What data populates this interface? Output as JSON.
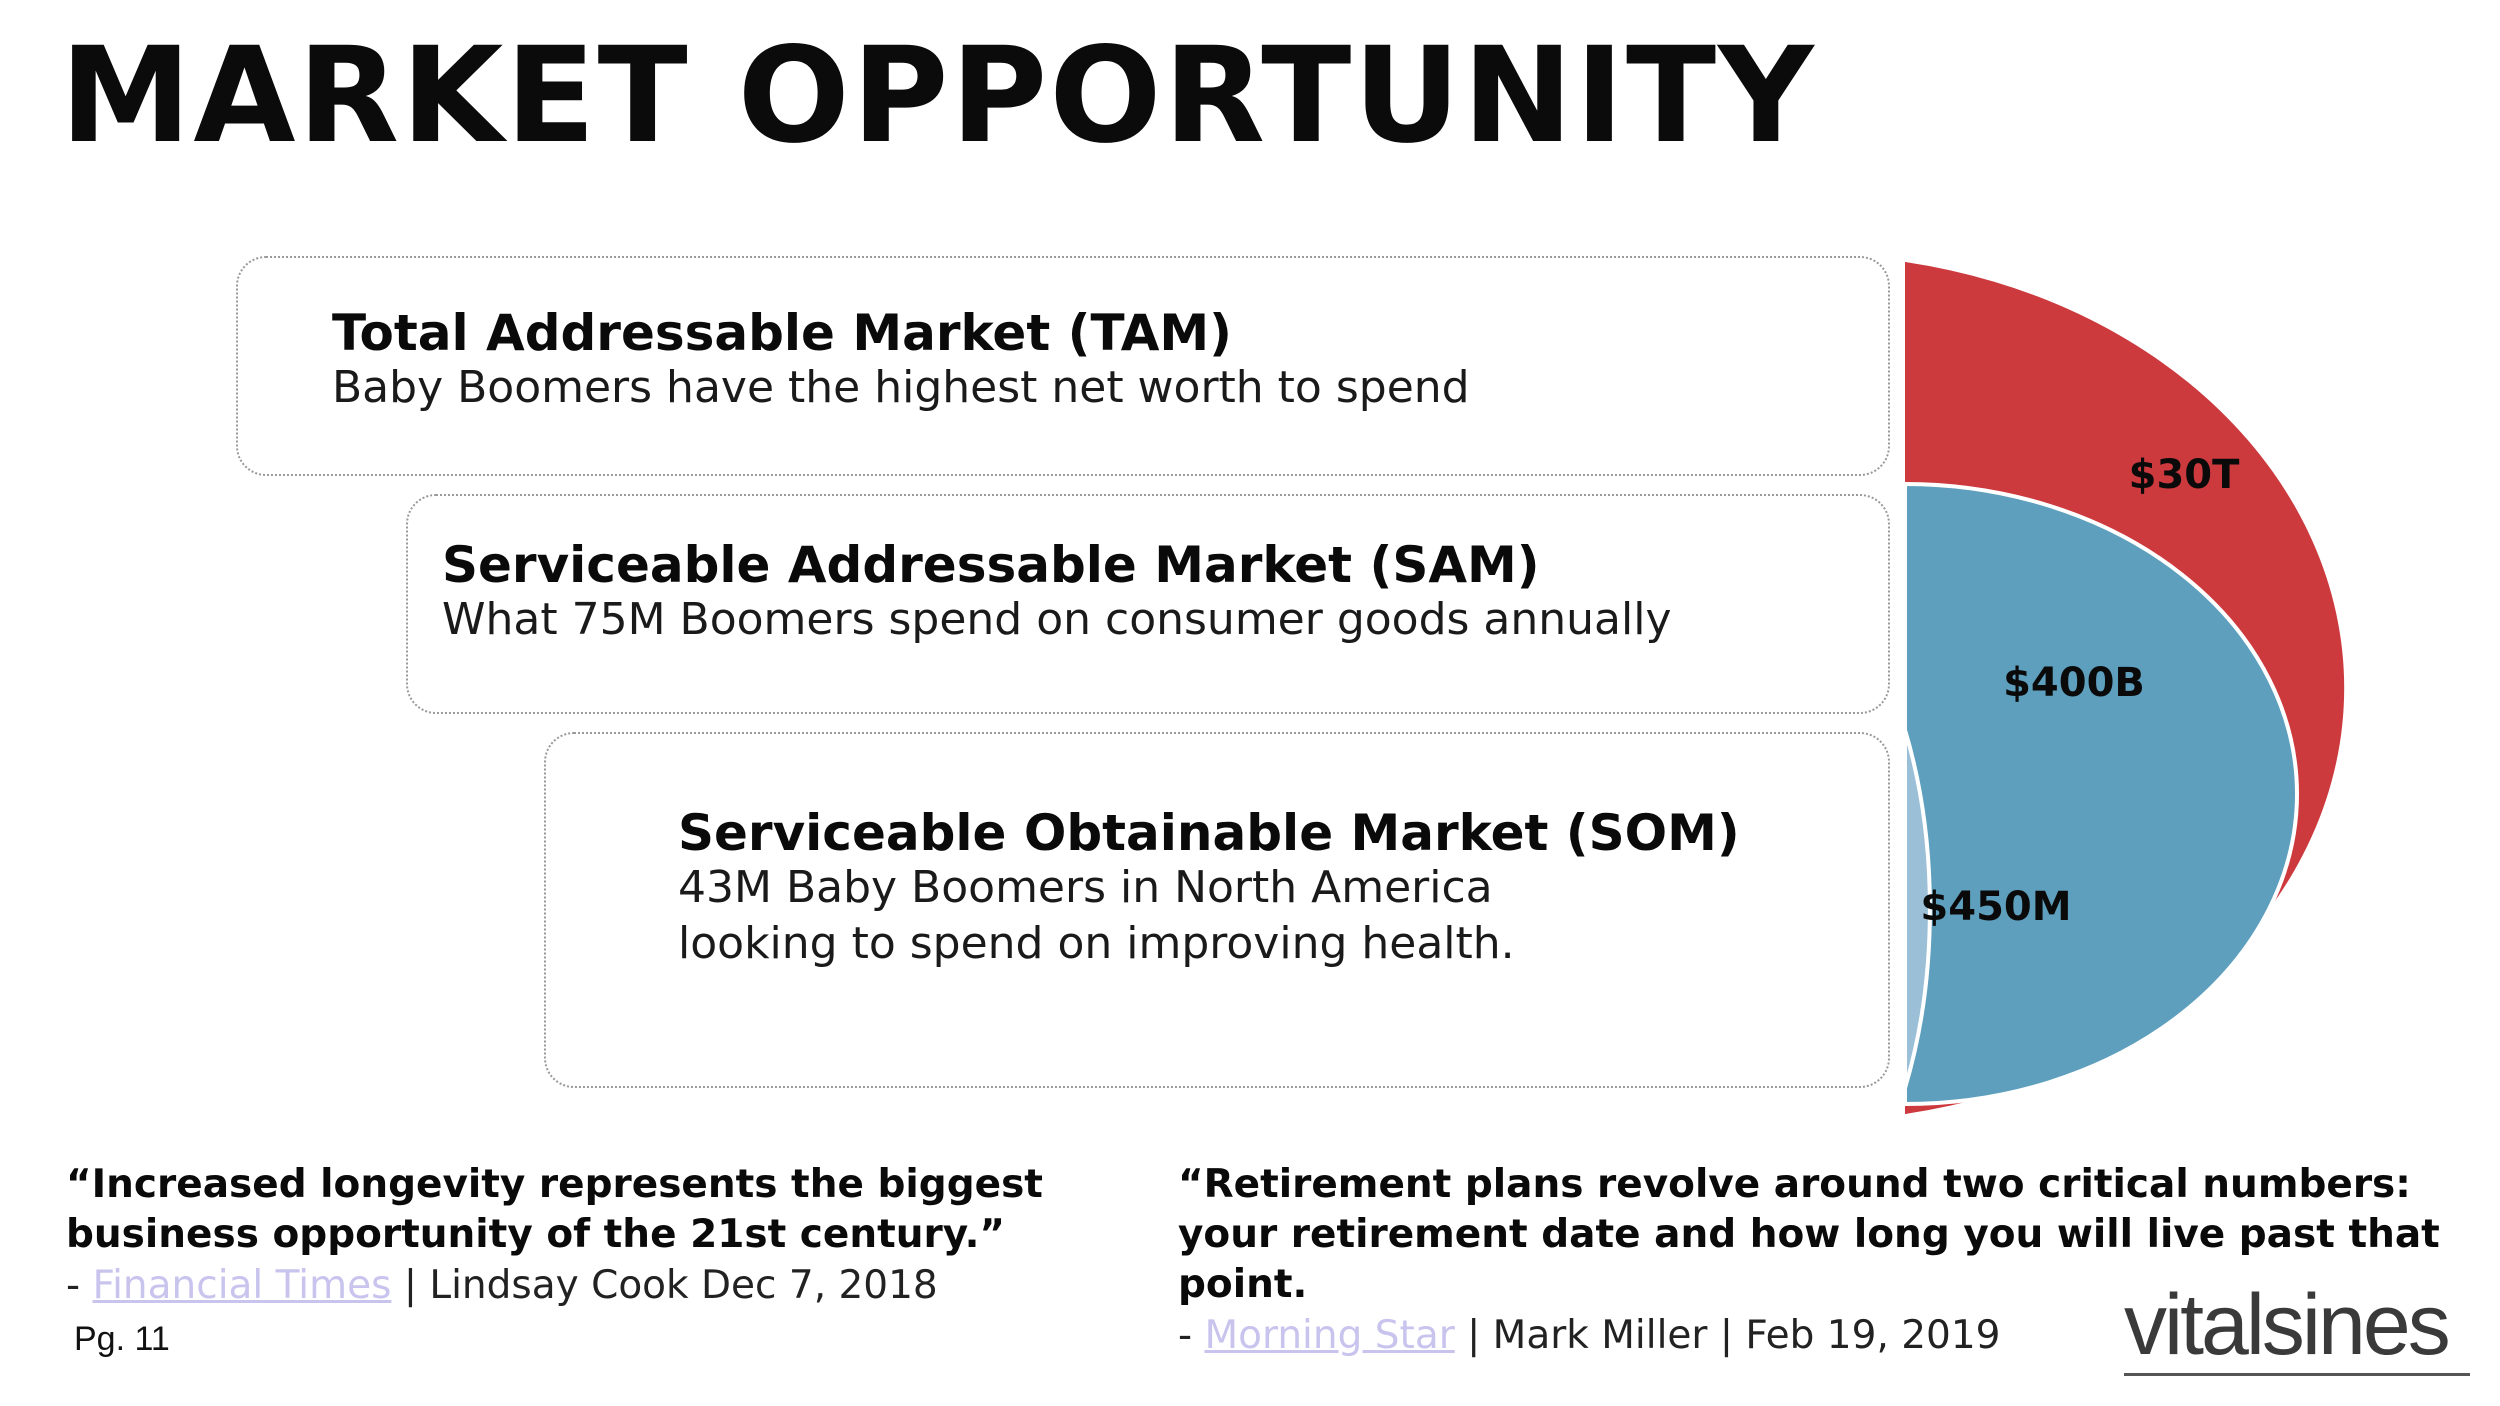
{
  "title": "MARKET OPPORTUNITY",
  "markets": [
    {
      "name": "Total Addressable Market (TAM)",
      "description": "Baby Boomers have the highest net worth to spend",
      "value_label": "$30T"
    },
    {
      "name": "Serviceable Addressable Market (SAM)",
      "description": "What 75M Boomers spend on consumer goods annually",
      "value_label": "$400B"
    },
    {
      "name": "Serviceable Obtainable Market (SOM)",
      "description_lines": [
        "43M Baby Boomers in North America",
        "looking to spend on improving health."
      ],
      "value_label": "$450M"
    }
  ],
  "colors": {
    "tam": "#cd3a3e",
    "sam": "#5d9fbd",
    "som": "#9bbfd6"
  },
  "quotes": [
    {
      "text": "“Increased longevity represents the biggest business opportunity of the 21st century.”",
      "dash": "- ",
      "source_link": "Financial Times",
      "source_rest": " | Lindsay Cook Dec 7, 2018"
    },
    {
      "text": "“Retirement plans revolve around two critical numbers: your retirement date and how long you will live past that point.",
      "dash": "- ",
      "source_link": "Morning Star",
      "source_rest": " | Mark Miller | Feb 19, 2019"
    }
  ],
  "page_number": "Pg. 11",
  "brand": "vitalsines"
}
